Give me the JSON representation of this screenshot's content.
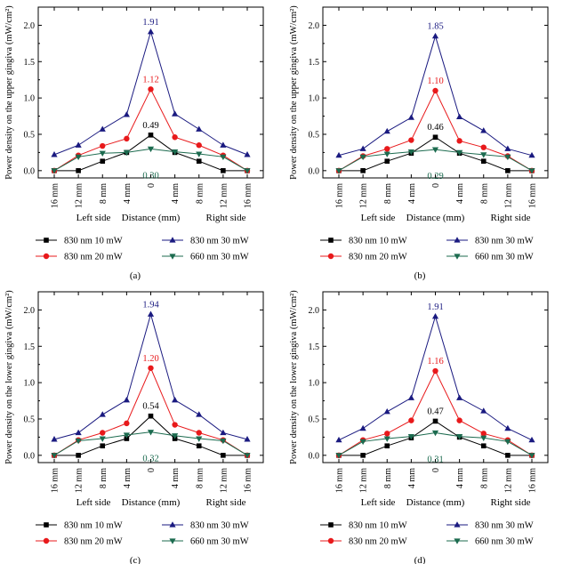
{
  "figure": {
    "x_tick_labels": [
      "16 mm",
      "12 mm",
      "8 mm",
      "4 mm",
      "0",
      "4 mm",
      "8 mm",
      "12 mm",
      "16 mm"
    ],
    "x_axis_title": {
      "left": "Left side",
      "center": "Distance (mm)",
      "right": "Right side"
    },
    "y_ticks": [
      "0.0",
      "0.5",
      "1.0",
      "1.5",
      "2.0"
    ],
    "ylabel_upper": "Power density on the upper gingiva (mW/cm²)",
    "ylabel_lower": "Power density on the lower gingiva (mW/cm²)",
    "legend_names": [
      "830 nm 10 mW",
      "830 nm 20 mW",
      "830 nm 30 mW",
      "660 nm 30 mW"
    ],
    "colors": {
      "s10": "#000000",
      "s20": "#e8191b",
      "s30": "#1a1a80",
      "s660": "#1c6b4f"
    }
  },
  "chart_data": [
    {
      "type": "line",
      "panel_label": "(a)",
      "ylabel": "Power density on the upper gingiva (mW/cm²)",
      "xlabel": "Distance (mm)",
      "ylim": [
        -0.1,
        2.25
      ],
      "x": [
        "16 mm",
        "12 mm",
        "8 mm",
        "4 mm",
        "0",
        "4 mm",
        "8 mm",
        "12 mm",
        "16 mm"
      ],
      "series": [
        {
          "name": "830 nm 10 mW",
          "values": [
            0.0,
            0.0,
            0.13,
            0.25,
            0.49,
            0.25,
            0.13,
            0.0,
            0.0
          ]
        },
        {
          "name": "830 nm 20 mW",
          "values": [
            0.0,
            0.21,
            0.34,
            0.44,
            1.12,
            0.46,
            0.35,
            0.21,
            0.0
          ]
        },
        {
          "name": "830 nm 30 mW",
          "values": [
            0.22,
            0.35,
            0.57,
            0.77,
            1.91,
            0.78,
            0.57,
            0.35,
            0.22
          ]
        },
        {
          "name": "660 nm 30 mW",
          "values": [
            0.0,
            0.19,
            0.24,
            0.25,
            0.3,
            0.26,
            0.23,
            0.19,
            0.0
          ]
        }
      ],
      "peak_labels": [
        "0.49",
        "1.12",
        "1.91",
        "0.30"
      ]
    },
    {
      "type": "line",
      "panel_label": "(b)",
      "ylabel": "Power density on the upper gingiva (mW/cm²)",
      "xlabel": "Distance (mm)",
      "ylim": [
        -0.1,
        2.25
      ],
      "x": [
        "16 mm",
        "12 mm",
        "8 mm",
        "4 mm",
        "0",
        "4 mm",
        "8 mm",
        "12 mm",
        "16 mm"
      ],
      "series": [
        {
          "name": "830 nm 10 mW",
          "values": [
            0.0,
            0.0,
            0.13,
            0.24,
            0.46,
            0.24,
            0.13,
            0.0,
            0.0
          ]
        },
        {
          "name": "830 nm 20 mW",
          "values": [
            0.0,
            0.2,
            0.3,
            0.42,
            1.1,
            0.41,
            0.32,
            0.2,
            0.0
          ]
        },
        {
          "name": "830 nm 30 mW",
          "values": [
            0.21,
            0.3,
            0.54,
            0.73,
            1.85,
            0.74,
            0.55,
            0.3,
            0.21
          ]
        },
        {
          "name": "660 nm 30 mW",
          "values": [
            0.0,
            0.19,
            0.23,
            0.26,
            0.29,
            0.25,
            0.22,
            0.19,
            0.0
          ]
        }
      ],
      "peak_labels": [
        "0.46",
        "1.10",
        "1.85",
        "0.29"
      ]
    },
    {
      "type": "line",
      "panel_label": "(c)",
      "ylabel": "Power density on the lower gingiva (mW/cm²)",
      "xlabel": "Distance (mm)",
      "ylim": [
        -0.1,
        2.25
      ],
      "x": [
        "16 mm",
        "12 mm",
        "8 mm",
        "4 mm",
        "0",
        "4 mm",
        "8 mm",
        "12 mm",
        "16 mm"
      ],
      "series": [
        {
          "name": "830 nm 10 mW",
          "values": [
            0.0,
            0.0,
            0.13,
            0.23,
            0.54,
            0.23,
            0.13,
            0.0,
            0.0
          ]
        },
        {
          "name": "830 nm 20 mW",
          "values": [
            0.0,
            0.21,
            0.31,
            0.44,
            1.2,
            0.42,
            0.31,
            0.21,
            0.0
          ]
        },
        {
          "name": "830 nm 30 mW",
          "values": [
            0.22,
            0.31,
            0.56,
            0.76,
            1.94,
            0.76,
            0.56,
            0.31,
            0.22
          ]
        },
        {
          "name": "660 nm 30 mW",
          "values": [
            0.0,
            0.2,
            0.23,
            0.28,
            0.32,
            0.27,
            0.23,
            0.2,
            0.0
          ]
        }
      ],
      "peak_labels": [
        "0.54",
        "1.20",
        "1.94",
        "0.32"
      ]
    },
    {
      "type": "line",
      "panel_label": "(d)",
      "ylabel": "Power density on the lower gingiva (mW/cm²)",
      "xlabel": "Distance (mm)",
      "ylim": [
        -0.1,
        2.25
      ],
      "x": [
        "16 mm",
        "12 mm",
        "8 mm",
        "4 mm",
        "0",
        "4 mm",
        "8 mm",
        "12 mm",
        "16 mm"
      ],
      "series": [
        {
          "name": "830 nm 10 mW",
          "values": [
            0.0,
            0.0,
            0.13,
            0.24,
            0.47,
            0.25,
            0.13,
            0.0,
            0.0
          ]
        },
        {
          "name": "830 nm 20 mW",
          "values": [
            0.0,
            0.21,
            0.3,
            0.48,
            1.16,
            0.48,
            0.3,
            0.21,
            0.0
          ]
        },
        {
          "name": "830 nm 30 mW",
          "values": [
            0.21,
            0.37,
            0.6,
            0.79,
            1.91,
            0.79,
            0.61,
            0.37,
            0.21
          ]
        },
        {
          "name": "660 nm 30 mW",
          "values": [
            0.0,
            0.19,
            0.23,
            0.26,
            0.31,
            0.26,
            0.24,
            0.19,
            0.0
          ]
        }
      ],
      "peak_labels": [
        "0.47",
        "1.16",
        "1.91",
        "0.31"
      ]
    }
  ]
}
